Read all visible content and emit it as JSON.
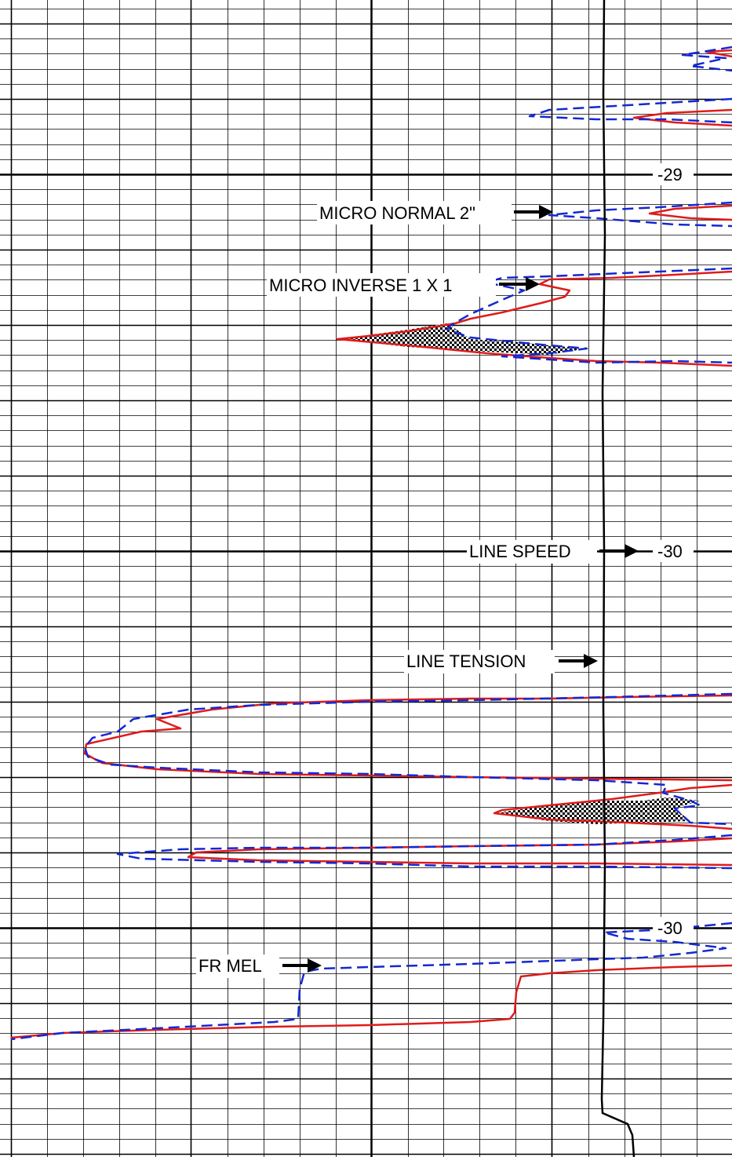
{
  "chart_data": {
    "type": "line",
    "grid": true,
    "depth_labels": [
      "-29",
      "-30",
      "-30"
    ],
    "curve_labels": [
      "MICRO NORMAL 2\"",
      "MICRO INVERSE 1 X 1",
      "LINE SPEED",
      "LINE TENSION",
      "FR MEL"
    ],
    "curve_colors": {
      "micro_normal": "#e01b1b",
      "micro_inverse": "#1428d2",
      "line_speed": "#000000",
      "shading": "#000000"
    },
    "note": ""
  },
  "labels": {
    "micro_normal": "MICRO NORMAL 2\"",
    "micro_inverse": "MICRO INVERSE 1 X 1",
    "line_speed": "LINE SPEED",
    "line_tension": "LINE TENSION",
    "fr_mel": "FR MEL",
    "depth_29": "-29",
    "depth_30a": "-30",
    "depth_30b": "-30"
  }
}
